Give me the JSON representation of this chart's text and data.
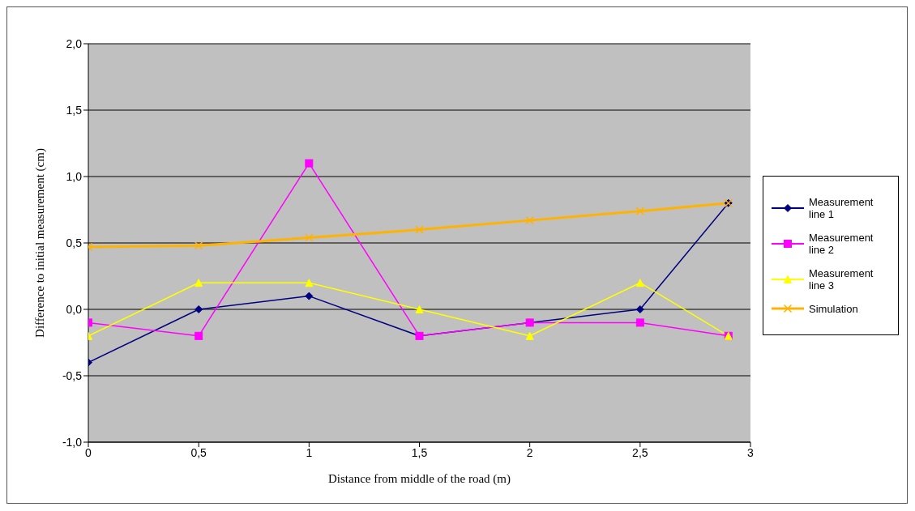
{
  "chart_data": {
    "type": "line",
    "xlabel": "Distance from middle of the road (m)",
    "ylabel": "Difference to initial  measurement (cm)",
    "x": [
      0,
      0.5,
      1,
      1.5,
      2,
      2.5,
      2.9
    ],
    "series": [
      {
        "name": "Measurement line 1",
        "color": "#000080",
        "marker": "diamond",
        "values": [
          -0.4,
          0,
          0.1,
          -0.2,
          -0.1,
          0,
          0.8
        ]
      },
      {
        "name": "Measurement line 2",
        "color": "#ff00ff",
        "marker": "square",
        "values": [
          -0.1,
          -0.2,
          1.1,
          -0.2,
          -0.1,
          -0.1,
          -0.2
        ]
      },
      {
        "name": "Measurement line 3",
        "color": "#ffff00",
        "marker": "triangle",
        "values": [
          -0.2,
          0.2,
          0.2,
          0,
          -0.2,
          0.2,
          -0.2
        ]
      },
      {
        "name": "Simulation",
        "color": "#ffb300",
        "marker": "cross",
        "values": [
          0.47,
          0.48,
          0.54,
          0.6,
          0.67,
          0.74,
          0.8
        ]
      }
    ],
    "xlim": [
      0,
      3
    ],
    "xticks": [
      0,
      {
        "value": 0.5,
        "label": "0,5"
      },
      1,
      {
        "value": 1.5,
        "label": "1,5"
      },
      2,
      {
        "value": 2.5,
        "label": "2,5"
      },
      3
    ],
    "ylim": [
      -1,
      2
    ],
    "yticks": [
      {
        "value": -1,
        "label": "-1,0"
      },
      {
        "value": -0.5,
        "label": "-0,5"
      },
      {
        "value": 0,
        "label": "0,0"
      },
      {
        "value": 0.5,
        "label": "0,5"
      },
      {
        "value": 1,
        "label": "1,0"
      },
      {
        "value": 1.5,
        "label": "1,5"
      },
      {
        "value": 2,
        "label": "2,0"
      }
    ],
    "grid": "y",
    "legend": "right",
    "line_style": "solid"
  }
}
